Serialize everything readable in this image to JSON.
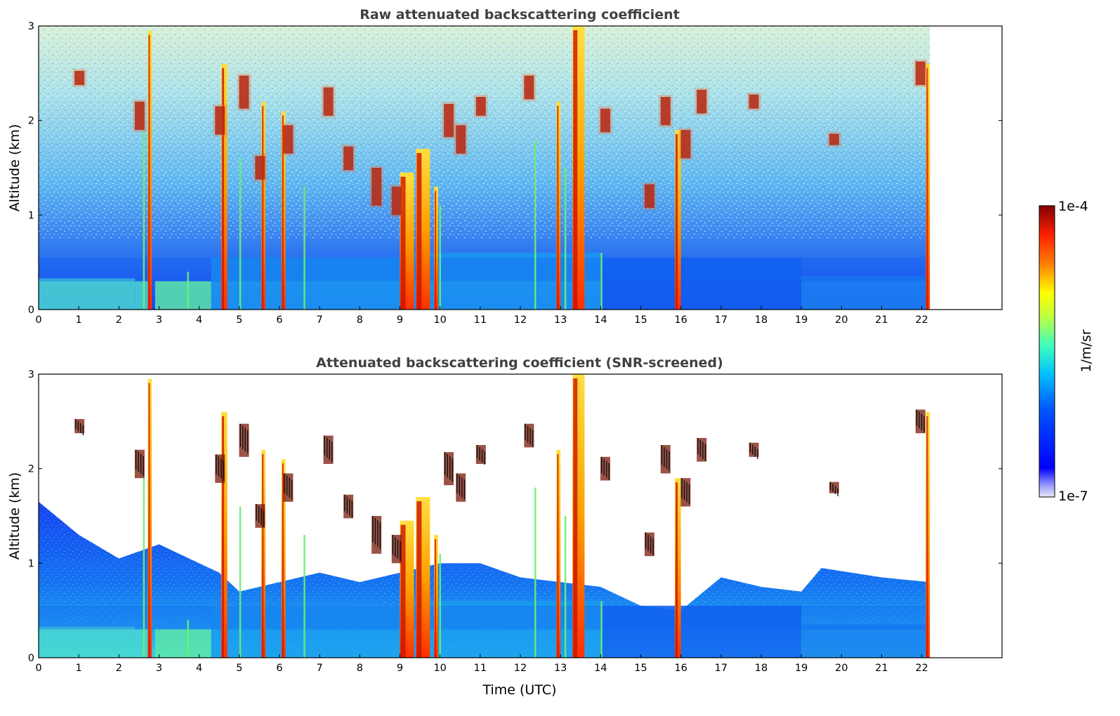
{
  "chart_data": [
    {
      "type": "heatmap",
      "title": "Raw attenuated backscattering coefficient",
      "xlabel": "",
      "ylabel": "Altitude (km)",
      "xlim": [
        0,
        24
      ],
      "ylim": [
        0,
        3
      ],
      "x_ticks": [
        "0",
        "1",
        "2",
        "3",
        "4",
        "5",
        "6",
        "7",
        "8",
        "9",
        "10",
        "11",
        "12",
        "13",
        "14",
        "15",
        "16",
        "17",
        "18",
        "19",
        "20",
        "21",
        "22"
      ],
      "y_ticks": [
        "0",
        "1",
        "2",
        "3"
      ],
      "data_end_time": 22.2,
      "colorscale": "jet",
      "color_range": [
        "1e-7",
        "1e-4"
      ],
      "color_unit": "1/m/sr",
      "screened": false,
      "features": {
        "boundary_layer_top_km": [
          0.35,
          0.3,
          0.55,
          0.6,
          0.7,
          0.5
        ],
        "cloud_columns_utc": [
          2.75,
          4.6,
          6.1,
          9.1,
          9.6,
          13.4,
          15.9
        ]
      }
    },
    {
      "type": "heatmap",
      "title": "Attenuated backscattering coefficient (SNR-screened)",
      "xlabel": "Time (UTC)",
      "ylabel": "Altitude (km)",
      "xlim": [
        0,
        24
      ],
      "ylim": [
        0,
        3
      ],
      "x_ticks": [
        "0",
        "1",
        "2",
        "3",
        "4",
        "5",
        "6",
        "7",
        "8",
        "9",
        "10",
        "11",
        "12",
        "13",
        "14",
        "15",
        "16",
        "17",
        "18",
        "19",
        "20",
        "21",
        "22"
      ],
      "y_ticks": [
        "0",
        "1",
        "2",
        "3"
      ],
      "data_end_time": 22.2,
      "colorscale": "jet",
      "color_range": [
        "1e-7",
        "1e-4"
      ],
      "color_unit": "1/m/sr",
      "screened": true
    }
  ],
  "colorbar": {
    "top_label": "1e-4",
    "bottom_label": "1e-7",
    "unit_label": "1/m/sr"
  }
}
